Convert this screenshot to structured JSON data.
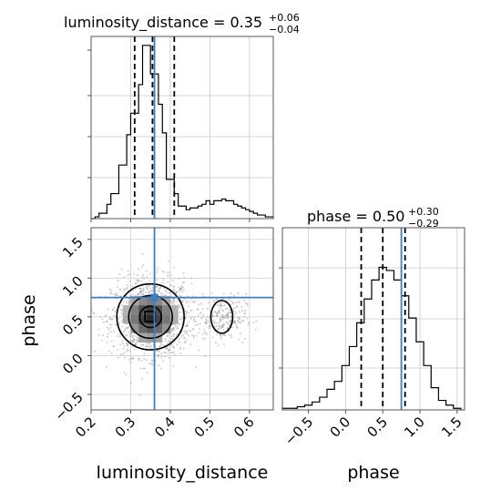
{
  "chart_data": {
    "type": "corner",
    "truth_color": "#3b7fc2",
    "parameters": [
      "luminosity_distance",
      "phase"
    ],
    "truths": {
      "luminosity_distance": 0.36,
      "phase": 0.75
    },
    "panels": [
      {
        "id": "luminosity_distance-hist",
        "type": "histogram",
        "title": {
          "main": "luminosity_distance = 0.35",
          "plus": "+0.06",
          "minus": "−0.04"
        },
        "xlim": [
          0.2,
          0.66
        ],
        "bin_edges": [
          0.2,
          0.21,
          0.22,
          0.23,
          0.24,
          0.25,
          0.26,
          0.27,
          0.28,
          0.29,
          0.3,
          0.31,
          0.32,
          0.33,
          0.34,
          0.35,
          0.36,
          0.37,
          0.38,
          0.39,
          0.4,
          0.41,
          0.42,
          0.43,
          0.44,
          0.45,
          0.46,
          0.47,
          0.48,
          0.49,
          0.5,
          0.51,
          0.52,
          0.53,
          0.54,
          0.55,
          0.56,
          0.57,
          0.58,
          0.59,
          0.6,
          0.61,
          0.62,
          0.63,
          0.64,
          0.65,
          0.66
        ],
        "counts": [
          0,
          1,
          3,
          3,
          8,
          14,
          14,
          30,
          30,
          47,
          59,
          59,
          75,
          97,
          97,
          81,
          81,
          64,
          48,
          22,
          22,
          14,
          7,
          7,
          5,
          6,
          6,
          7,
          8,
          10,
          8,
          10,
          10,
          11,
          10,
          10,
          8,
          7,
          6,
          5,
          4,
          3,
          2,
          2,
          1,
          1
        ],
        "ymax": 102,
        "quantile_lines": [
          0.31,
          0.355,
          0.41
        ],
        "truth": 0.36
      },
      {
        "id": "scatter-2d",
        "type": "scatter",
        "xlim": [
          0.2,
          0.66
        ],
        "ylim": [
          -0.7,
          1.65
        ],
        "center": [
          0.35,
          0.5
        ],
        "spread": [
          0.05,
          0.25
        ],
        "secondary_center": [
          0.53,
          0.5
        ],
        "secondary_spread": [
          0.03,
          0.15
        ],
        "contour_levels": [
          "inner",
          "middle",
          "outer"
        ],
        "truth": [
          0.36,
          0.75
        ]
      },
      {
        "id": "phase-hist",
        "type": "histogram",
        "title": {
          "main": "phase = 0.50",
          "plus": "+0.30",
          "minus": "−0.29"
        },
        "xlim": [
          -0.85,
          1.6
        ],
        "bin_edges": [
          -0.85,
          -0.75,
          -0.65,
          -0.55,
          -0.45,
          -0.35,
          -0.25,
          -0.15,
          -0.05,
          0.05,
          0.15,
          0.25,
          0.35,
          0.45,
          0.55,
          0.65,
          0.75,
          0.85,
          0.95,
          1.05,
          1.15,
          1.25,
          1.35,
          1.45,
          1.55
        ],
        "counts": [
          1,
          1,
          2,
          3,
          5,
          8,
          13,
          18,
          28,
          40,
          55,
          70,
          82,
          90,
          88,
          82,
          72,
          58,
          43,
          28,
          14,
          6,
          3,
          1
        ],
        "ymax": 115,
        "quantile_lines": [
          0.21,
          0.5,
          0.8
        ],
        "truth": 0.75
      }
    ],
    "tick_labels": {
      "top_hist_y": [
        "",
        "",
        "",
        ""
      ],
      "scatter_x": [
        "0.2",
        "0.3",
        "0.4",
        "0.5",
        "0.6"
      ],
      "scatter_x_values": [
        0.2,
        0.3,
        0.4,
        0.5,
        0.6
      ],
      "scatter_y": [
        "−0.5",
        "0.0",
        "0.5",
        "1.0",
        "1.5"
      ],
      "scatter_y_values": [
        -0.5,
        0.0,
        0.5,
        1.0,
        1.5
      ],
      "phase_x": [
        "−0.5",
        "0.0",
        "0.5",
        "1.0",
        "1.5"
      ],
      "phase_x_values": [
        -0.5,
        0.0,
        0.5,
        1.0,
        1.5
      ]
    },
    "axis_labels": {
      "x_left": "luminosity_distance",
      "x_right": "phase",
      "y_left": "phase"
    }
  }
}
